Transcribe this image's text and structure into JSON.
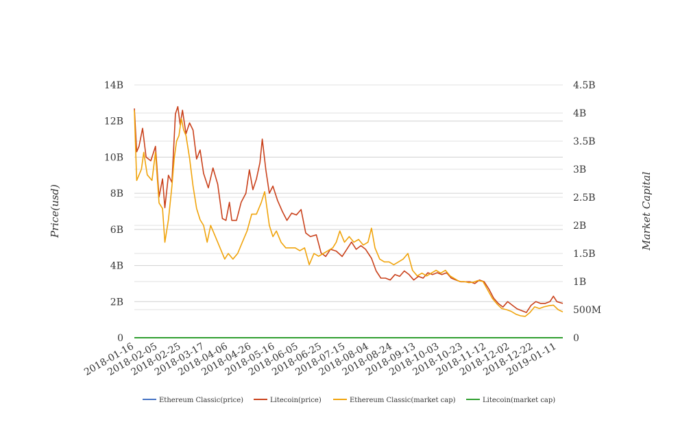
{
  "chart_data": {
    "type": "line",
    "title": "",
    "ylabel_left": "Price(usd)",
    "ylabel_right": "Market Capital",
    "x_ticks": [
      "2018-01-16",
      "2018-02-05",
      "2018-02-25",
      "2018-03-17",
      "2018-04-06",
      "2018-04-26",
      "2018-05-16",
      "2018-06-05",
      "2018-06-25",
      "2018-07-15",
      "2018-08-04",
      "2018-08-24",
      "2018-09-13",
      "2018-10-03",
      "2018-10-23",
      "2018-11-12",
      "2018-12-02",
      "2018-12-22",
      "2019-01-11"
    ],
    "left_axis": {
      "ylim": [
        0,
        14000000000
      ],
      "ticks": [
        0,
        2000000000,
        4000000000,
        6000000000,
        8000000000,
        10000000000,
        12000000000,
        14000000000
      ],
      "tick_labels": [
        "0",
        "2B",
        "4B",
        "6B",
        "8B",
        "10B",
        "12B",
        "14B"
      ]
    },
    "right_axis": {
      "ylim": [
        0,
        4500000000
      ],
      "ticks": [
        0,
        500000000,
        1000000000,
        1500000000,
        2000000000,
        2500000000,
        3000000000,
        3500000000,
        4000000000,
        4500000000
      ],
      "tick_labels": [
        "0",
        "500M",
        "1B",
        "1.5B",
        "2B",
        "2.5B",
        "3B",
        "3.5B",
        "4B",
        "4.5B"
      ]
    },
    "x_range": [
      "2018-01-16",
      "2019-01-16"
    ],
    "grid": true,
    "legend_position": "bottom",
    "series": [
      {
        "name": "Ethereum Classic(price)",
        "color": "#4472c4",
        "axis": "left",
        "points": [
          [
            "2018-01-16",
            30
          ],
          [
            "2018-03-01",
            22
          ],
          [
            "2018-06-01",
            14
          ],
          [
            "2018-09-01",
            12
          ],
          [
            "2018-12-01",
            5
          ],
          [
            "2019-01-16",
            5
          ]
        ]
      },
      {
        "name": "Litecoin(price)",
        "color": "#c9401a",
        "axis": "left",
        "points": [
          [
            "2018-01-16",
            12700000000
          ],
          [
            "2018-01-18",
            10300000000
          ],
          [
            "2018-01-20",
            10600000000
          ],
          [
            "2018-01-23",
            11600000000
          ],
          [
            "2018-01-26",
            10000000000
          ],
          [
            "2018-01-30",
            9800000000
          ],
          [
            "2018-02-03",
            10600000000
          ],
          [
            "2018-02-06",
            7800000000
          ],
          [
            "2018-02-09",
            8800000000
          ],
          [
            "2018-02-11",
            7200000000
          ],
          [
            "2018-02-14",
            9000000000
          ],
          [
            "2018-02-17",
            8600000000
          ],
          [
            "2018-02-20",
            12400000000
          ],
          [
            "2018-02-22",
            12800000000
          ],
          [
            "2018-02-24",
            11800000000
          ],
          [
            "2018-02-26",
            12600000000
          ],
          [
            "2018-03-01",
            11300000000
          ],
          [
            "2018-03-04",
            11900000000
          ],
          [
            "2018-03-07",
            11500000000
          ],
          [
            "2018-03-10",
            9900000000
          ],
          [
            "2018-03-13",
            10400000000
          ],
          [
            "2018-03-16",
            9100000000
          ],
          [
            "2018-03-20",
            8300000000
          ],
          [
            "2018-03-24",
            9400000000
          ],
          [
            "2018-03-28",
            8500000000
          ],
          [
            "2018-04-01",
            6600000000
          ],
          [
            "2018-04-04",
            6500000000
          ],
          [
            "2018-04-07",
            7500000000
          ],
          [
            "2018-04-09",
            6500000000
          ],
          [
            "2018-04-13",
            6500000000
          ],
          [
            "2018-04-17",
            7500000000
          ],
          [
            "2018-04-21",
            8000000000
          ],
          [
            "2018-04-24",
            9300000000
          ],
          [
            "2018-04-27",
            8200000000
          ],
          [
            "2018-04-30",
            8800000000
          ],
          [
            "2018-05-03",
            9700000000
          ],
          [
            "2018-05-05",
            11000000000
          ],
          [
            "2018-05-08",
            9300000000
          ],
          [
            "2018-05-11",
            8000000000
          ],
          [
            "2018-05-14",
            8400000000
          ],
          [
            "2018-05-18",
            7600000000
          ],
          [
            "2018-05-22",
            7000000000
          ],
          [
            "2018-05-26",
            6500000000
          ],
          [
            "2018-05-30",
            6900000000
          ],
          [
            "2018-06-03",
            6800000000
          ],
          [
            "2018-06-07",
            7100000000
          ],
          [
            "2018-06-11",
            5800000000
          ],
          [
            "2018-06-15",
            5600000000
          ],
          [
            "2018-06-20",
            5700000000
          ],
          [
            "2018-06-24",
            4700000000
          ],
          [
            "2018-06-28",
            4500000000
          ],
          [
            "2018-07-02",
            4900000000
          ],
          [
            "2018-07-07",
            4800000000
          ],
          [
            "2018-07-12",
            4500000000
          ],
          [
            "2018-07-16",
            4900000000
          ],
          [
            "2018-07-20",
            5300000000
          ],
          [
            "2018-07-24",
            4900000000
          ],
          [
            "2018-07-28",
            5100000000
          ],
          [
            "2018-08-01",
            4900000000
          ],
          [
            "2018-08-06",
            4400000000
          ],
          [
            "2018-08-10",
            3700000000
          ],
          [
            "2018-08-14",
            3300000000
          ],
          [
            "2018-08-18",
            3300000000
          ],
          [
            "2018-08-22",
            3200000000
          ],
          [
            "2018-08-26",
            3500000000
          ],
          [
            "2018-08-30",
            3400000000
          ],
          [
            "2018-09-03",
            3700000000
          ],
          [
            "2018-09-07",
            3500000000
          ],
          [
            "2018-09-11",
            3200000000
          ],
          [
            "2018-09-15",
            3400000000
          ],
          [
            "2018-09-19",
            3300000000
          ],
          [
            "2018-09-23",
            3600000000
          ],
          [
            "2018-09-27",
            3500000000
          ],
          [
            "2018-10-01",
            3600000000
          ],
          [
            "2018-10-05",
            3500000000
          ],
          [
            "2018-10-09",
            3600000000
          ],
          [
            "2018-10-13",
            3300000000
          ],
          [
            "2018-10-17",
            3200000000
          ],
          [
            "2018-10-21",
            3100000000
          ],
          [
            "2018-10-25",
            3100000000
          ],
          [
            "2018-10-29",
            3100000000
          ],
          [
            "2018-11-02",
            3000000000
          ],
          [
            "2018-11-06",
            3200000000
          ],
          [
            "2018-11-10",
            3100000000
          ],
          [
            "2018-11-14",
            2700000000
          ],
          [
            "2018-11-18",
            2200000000
          ],
          [
            "2018-11-22",
            1900000000
          ],
          [
            "2018-11-26",
            1700000000
          ],
          [
            "2018-11-30",
            2000000000
          ],
          [
            "2018-12-04",
            1800000000
          ],
          [
            "2018-12-08",
            1600000000
          ],
          [
            "2018-12-12",
            1500000000
          ],
          [
            "2018-12-16",
            1400000000
          ],
          [
            "2018-12-20",
            1800000000
          ],
          [
            "2018-12-24",
            2000000000
          ],
          [
            "2018-12-28",
            1900000000
          ],
          [
            "2019-01-01",
            1900000000
          ],
          [
            "2019-01-05",
            2000000000
          ],
          [
            "2019-01-08",
            2300000000
          ],
          [
            "2019-01-11",
            2000000000
          ],
          [
            "2019-01-16",
            1900000000
          ]
        ]
      },
      {
        "name": "Ethereum Classic(market cap)",
        "color": "#f0a30a",
        "axis": "right",
        "points": [
          [
            "2018-01-16",
            4050000000
          ],
          [
            "2018-01-18",
            2800000000
          ],
          [
            "2018-01-22",
            3000000000
          ],
          [
            "2018-01-24",
            3300000000
          ],
          [
            "2018-01-27",
            2900000000
          ],
          [
            "2018-01-31",
            2800000000
          ],
          [
            "2018-02-03",
            3300000000
          ],
          [
            "2018-02-06",
            2400000000
          ],
          [
            "2018-02-09",
            2300000000
          ],
          [
            "2018-02-11",
            1700000000
          ],
          [
            "2018-02-14",
            2100000000
          ],
          [
            "2018-02-17",
            2700000000
          ],
          [
            "2018-02-19",
            3200000000
          ],
          [
            "2018-02-21",
            3500000000
          ],
          [
            "2018-02-23",
            3600000000
          ],
          [
            "2018-02-25",
            3900000000
          ],
          [
            "2018-02-27",
            3700000000
          ],
          [
            "2018-03-01",
            3600000000
          ],
          [
            "2018-03-04",
            3200000000
          ],
          [
            "2018-03-07",
            2700000000
          ],
          [
            "2018-03-10",
            2300000000
          ],
          [
            "2018-03-13",
            2100000000
          ],
          [
            "2018-03-16",
            2000000000
          ],
          [
            "2018-03-19",
            1700000000
          ],
          [
            "2018-03-22",
            2000000000
          ],
          [
            "2018-03-26",
            1800000000
          ],
          [
            "2018-03-30",
            1600000000
          ],
          [
            "2018-04-03",
            1400000000
          ],
          [
            "2018-04-06",
            1500000000
          ],
          [
            "2018-04-10",
            1400000000
          ],
          [
            "2018-04-14",
            1500000000
          ],
          [
            "2018-04-18",
            1700000000
          ],
          [
            "2018-04-22",
            1900000000
          ],
          [
            "2018-04-26",
            2200000000
          ],
          [
            "2018-04-30",
            2200000000
          ],
          [
            "2018-05-04",
            2400000000
          ],
          [
            "2018-05-07",
            2600000000
          ],
          [
            "2018-05-11",
            2000000000
          ],
          [
            "2018-05-14",
            1800000000
          ],
          [
            "2018-05-17",
            1900000000
          ],
          [
            "2018-05-21",
            1700000000
          ],
          [
            "2018-05-25",
            1600000000
          ],
          [
            "2018-05-29",
            1600000000
          ],
          [
            "2018-06-02",
            1600000000
          ],
          [
            "2018-06-06",
            1550000000
          ],
          [
            "2018-06-10",
            1600000000
          ],
          [
            "2018-06-14",
            1300000000
          ],
          [
            "2018-06-18",
            1500000000
          ],
          [
            "2018-06-22",
            1450000000
          ],
          [
            "2018-06-26",
            1500000000
          ],
          [
            "2018-06-30",
            1550000000
          ],
          [
            "2018-07-04",
            1600000000
          ],
          [
            "2018-07-07",
            1700000000
          ],
          [
            "2018-07-10",
            1900000000
          ],
          [
            "2018-07-14",
            1700000000
          ],
          [
            "2018-07-18",
            1800000000
          ],
          [
            "2018-07-22",
            1700000000
          ],
          [
            "2018-07-26",
            1750000000
          ],
          [
            "2018-07-30",
            1650000000
          ],
          [
            "2018-08-03",
            1700000000
          ],
          [
            "2018-08-06",
            1950000000
          ],
          [
            "2018-08-09",
            1600000000
          ],
          [
            "2018-08-13",
            1400000000
          ],
          [
            "2018-08-17",
            1350000000
          ],
          [
            "2018-08-21",
            1350000000
          ],
          [
            "2018-08-25",
            1300000000
          ],
          [
            "2018-08-29",
            1350000000
          ],
          [
            "2018-09-02",
            1400000000
          ],
          [
            "2018-09-06",
            1500000000
          ],
          [
            "2018-09-10",
            1200000000
          ],
          [
            "2018-09-14",
            1100000000
          ],
          [
            "2018-09-18",
            1150000000
          ],
          [
            "2018-09-22",
            1100000000
          ],
          [
            "2018-09-26",
            1150000000
          ],
          [
            "2018-09-30",
            1200000000
          ],
          [
            "2018-10-04",
            1150000000
          ],
          [
            "2018-10-08",
            1200000000
          ],
          [
            "2018-10-12",
            1100000000
          ],
          [
            "2018-10-16",
            1050000000
          ],
          [
            "2018-10-20",
            1000000000
          ],
          [
            "2018-10-24",
            1000000000
          ],
          [
            "2018-10-28",
            980000000
          ],
          [
            "2018-11-01",
            990000000
          ],
          [
            "2018-11-05",
            1020000000
          ],
          [
            "2018-11-09",
            1000000000
          ],
          [
            "2018-11-13",
            850000000
          ],
          [
            "2018-11-17",
            700000000
          ],
          [
            "2018-11-21",
            600000000
          ],
          [
            "2018-11-25",
            520000000
          ],
          [
            "2018-11-29",
            500000000
          ],
          [
            "2018-12-03",
            470000000
          ],
          [
            "2018-12-07",
            420000000
          ],
          [
            "2018-12-11",
            390000000
          ],
          [
            "2018-12-15",
            380000000
          ],
          [
            "2018-12-19",
            450000000
          ],
          [
            "2018-12-23",
            550000000
          ],
          [
            "2018-12-27",
            520000000
          ],
          [
            "2018-12-31",
            550000000
          ],
          [
            "2019-01-04",
            570000000
          ],
          [
            "2019-01-08",
            580000000
          ],
          [
            "2019-01-12",
            500000000
          ],
          [
            "2019-01-16",
            460000000
          ]
        ]
      },
      {
        "name": "Litecoin(market cap)",
        "color": "#2e9e2e",
        "axis": "right",
        "points": [
          [
            "2018-01-16",
            0
          ],
          [
            "2019-01-16",
            0
          ]
        ]
      }
    ]
  }
}
